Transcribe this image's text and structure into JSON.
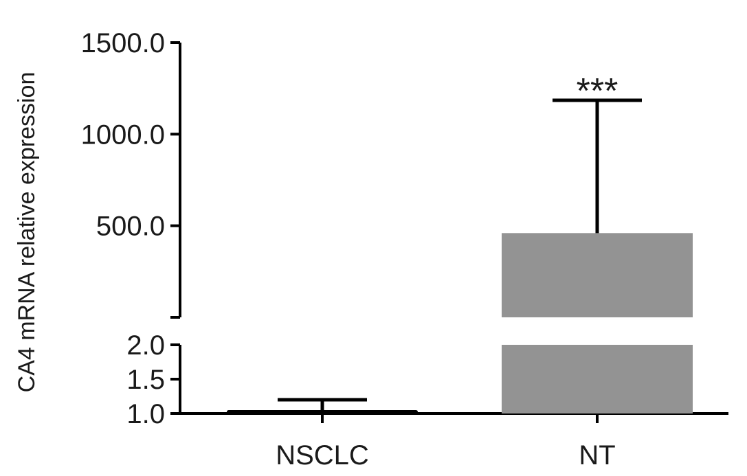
{
  "chart_data": {
    "type": "bar",
    "ylabel": "CA4 mRNA relative expression",
    "categories": [
      "NSCLC",
      "NT"
    ],
    "values": [
      1.05,
      460
    ],
    "error_upper": [
      1.2,
      1185
    ],
    "bar_colors": [
      "#000000",
      "#939393"
    ],
    "significance": [
      {
        "category": "NT",
        "label": "***"
      }
    ],
    "y_axis": {
      "broken": true,
      "lower_segment": {
        "range": [
          1.0,
          2.0
        ],
        "ticks": [
          1.0,
          1.5,
          2.0
        ],
        "labels": [
          "1.0",
          "1.5",
          "2.0"
        ]
      },
      "upper_segment": {
        "range": [
          0,
          1500
        ],
        "ticks": [
          500,
          1000,
          1500
        ],
        "labels": [
          "500.0",
          "1000.0",
          "1500.0"
        ]
      }
    },
    "grid": false,
    "legend": "none"
  }
}
